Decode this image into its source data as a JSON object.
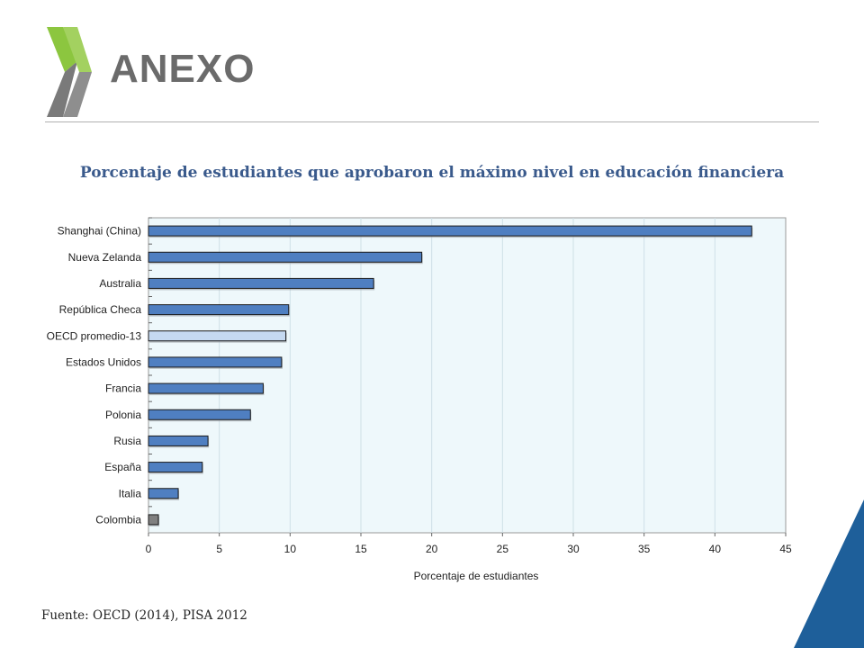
{
  "header": {
    "title": "ANEXO"
  },
  "colors": {
    "accent_green": "#8cc63f",
    "accent_grey": "#7a7a7a",
    "corner_blue": "#1e5f9a",
    "bar_blue": "#4f7fc1",
    "bar_light": "#c5d9f1",
    "bar_grey": "#808080",
    "plot_bg": "#eef8fb"
  },
  "icons": {
    "logo": "oecd-chevron-logo"
  },
  "chart_data": {
    "type": "bar",
    "orientation": "horizontal",
    "title": "Porcentaje de estudiantes que aprobaron el máximo nivel en educación financiera",
    "xlabel": "Porcentaje de estudiantes",
    "ylabel": "",
    "xlim": [
      0,
      45
    ],
    "xticks": [
      0,
      5,
      10,
      15,
      20,
      25,
      30,
      35,
      40,
      45
    ],
    "grid": true,
    "categories": [
      "Shanghai (China)",
      "Nueva Zelanda",
      "Australia",
      "República Checa",
      "OECD promedio-13",
      "Estados Unidos",
      "Francia",
      "Polonia",
      "Rusia",
      "España",
      "Italia",
      "Colombia"
    ],
    "values": [
      42.6,
      19.3,
      15.9,
      9.9,
      9.7,
      9.4,
      8.1,
      7.2,
      4.2,
      3.8,
      2.1,
      0.7
    ],
    "highlight": {
      "OECD promedio-13": "light",
      "Colombia": "grey"
    }
  },
  "footer": {
    "source": "Fuente: OECD (2014), PISA 2012"
  }
}
